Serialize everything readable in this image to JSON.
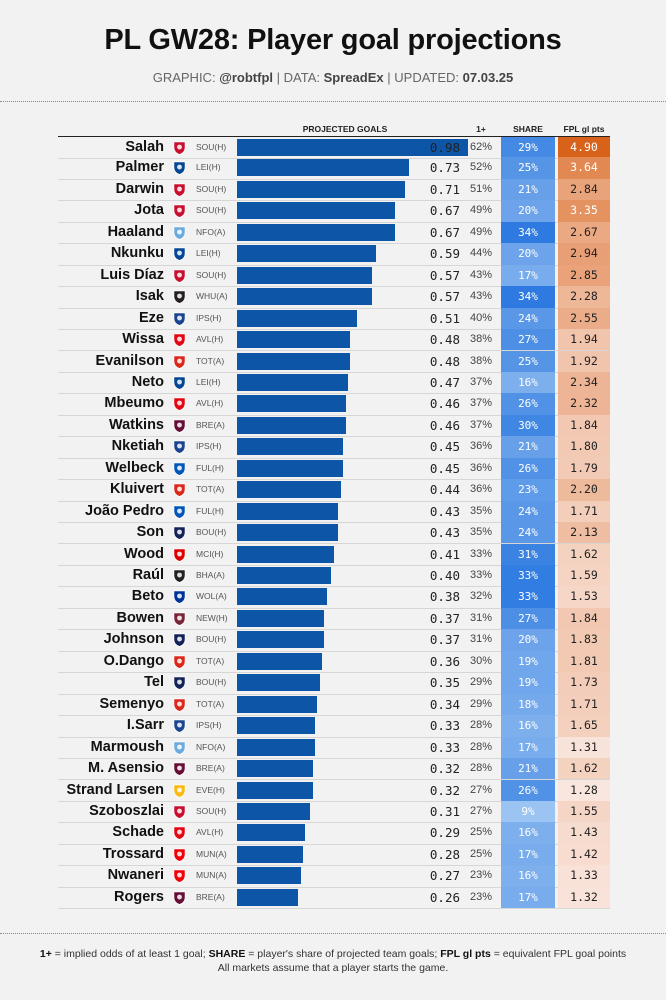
{
  "header": {
    "title": "PL GW28: Player goal projections",
    "graphic_label": "GRAPHIC:",
    "graphic_value": "@robtfpl",
    "data_label": "DATA:",
    "data_value": "SpreadEx",
    "updated_label": "UPDATED:",
    "updated_value": "07.03.25",
    "sep": "|"
  },
  "columns": {
    "projected": "PROJECTED GOALS",
    "odds": "1+",
    "share": "SHARE",
    "fpl": "FPL gl pts"
  },
  "footer": {
    "odds_key": "1+",
    "odds_text": " = implied odds of at least 1 goal; ",
    "share_key": "SHARE",
    "share_text": " = player's share of projected team goals; ",
    "fpl_key": "FPL gl pts",
    "fpl_text": " = equivalent FPL goal points",
    "line2": "All markets assume that a player starts the game."
  },
  "colors": {
    "bar": "#0d55a6",
    "share_low": "#9cc4f2",
    "share_high": "#2e7ae0",
    "fpl_low": "#f9e6de",
    "fpl_high": "#d9621a",
    "LIV": "#c8102e",
    "CHE": "#034694",
    "MCI": "#6cabdd",
    "NEW": "#241f20",
    "CRY": "#1b458f",
    "BRE": "#e30613",
    "BOU": "#da291c",
    "BHA": "#0057b8",
    "AVL": "#670e36",
    "ARS": "#ef0107",
    "TOT": "#132257",
    "NFO": "#dd0000",
    "FUL": "#222222",
    "EVE": "#003399",
    "WHU": "#7a263a",
    "WOL": "#fdb913"
  },
  "chart_data": {
    "type": "table",
    "title": "PL GW28: Player goal projections",
    "xlabel": "PROJECTED GOALS",
    "xlim": [
      0,
      1.0
    ],
    "rows": [
      {
        "player": "Salah",
        "club_icon": "liverpool-crest-icon",
        "club": "LIV",
        "fixture": "SOU(H)",
        "goals": 0.98,
        "odds": "62%",
        "share": "29%",
        "share_num": 29,
        "fpl": 4.9
      },
      {
        "player": "Palmer",
        "club_icon": "chelsea-crest-icon",
        "club": "CHE",
        "fixture": "LEI(H)",
        "goals": 0.73,
        "odds": "52%",
        "share": "25%",
        "share_num": 25,
        "fpl": 3.64
      },
      {
        "player": "Darwin",
        "club_icon": "liverpool-crest-icon",
        "club": "LIV",
        "fixture": "SOU(H)",
        "goals": 0.71,
        "odds": "51%",
        "share": "21%",
        "share_num": 21,
        "fpl": 2.84
      },
      {
        "player": "Jota",
        "club_icon": "liverpool-crest-icon",
        "club": "LIV",
        "fixture": "SOU(H)",
        "goals": 0.67,
        "odds": "49%",
        "share": "20%",
        "share_num": 20,
        "fpl": 3.35
      },
      {
        "player": "Haaland",
        "club_icon": "man-city-crest-icon",
        "club": "MCI",
        "fixture": "NFO(A)",
        "goals": 0.67,
        "odds": "49%",
        "share": "34%",
        "share_num": 34,
        "fpl": 2.67
      },
      {
        "player": "Nkunku",
        "club_icon": "chelsea-crest-icon",
        "club": "CHE",
        "fixture": "LEI(H)",
        "goals": 0.59,
        "odds": "44%",
        "share": "20%",
        "share_num": 20,
        "fpl": 2.94
      },
      {
        "player": "Luis Díaz",
        "club_icon": "liverpool-crest-icon",
        "club": "LIV",
        "fixture": "SOU(H)",
        "goals": 0.57,
        "odds": "43%",
        "share": "17%",
        "share_num": 17,
        "fpl": 2.85
      },
      {
        "player": "Isak",
        "club_icon": "newcastle-crest-icon",
        "club": "NEW",
        "fixture": "WHU(A)",
        "goals": 0.57,
        "odds": "43%",
        "share": "34%",
        "share_num": 34,
        "fpl": 2.28
      },
      {
        "player": "Eze",
        "club_icon": "crystal-palace-crest-icon",
        "club": "CRY",
        "fixture": "IPS(H)",
        "goals": 0.51,
        "odds": "40%",
        "share": "24%",
        "share_num": 24,
        "fpl": 2.55
      },
      {
        "player": "Wissa",
        "club_icon": "brentford-crest-icon",
        "club": "BRE",
        "fixture": "AVL(H)",
        "goals": 0.48,
        "odds": "38%",
        "share": "27%",
        "share_num": 27,
        "fpl": 1.94
      },
      {
        "player": "Evanilson",
        "club_icon": "bournemouth-crest-icon",
        "club": "BOU",
        "fixture": "TOT(A)",
        "goals": 0.48,
        "odds": "38%",
        "share": "25%",
        "share_num": 25,
        "fpl": 1.92
      },
      {
        "player": "Neto",
        "club_icon": "chelsea-crest-icon",
        "club": "CHE",
        "fixture": "LEI(H)",
        "goals": 0.47,
        "odds": "37%",
        "share": "16%",
        "share_num": 16,
        "fpl": 2.34
      },
      {
        "player": "Mbeumo",
        "club_icon": "brentford-crest-icon",
        "club": "BRE",
        "fixture": "AVL(H)",
        "goals": 0.46,
        "odds": "37%",
        "share": "26%",
        "share_num": 26,
        "fpl": 2.32
      },
      {
        "player": "Watkins",
        "club_icon": "aston-villa-crest-icon",
        "club": "AVL",
        "fixture": "BRE(A)",
        "goals": 0.46,
        "odds": "37%",
        "share": "30%",
        "share_num": 30,
        "fpl": 1.84
      },
      {
        "player": "Nketiah",
        "club_icon": "crystal-palace-crest-icon",
        "club": "CRY",
        "fixture": "IPS(H)",
        "goals": 0.45,
        "odds": "36%",
        "share": "21%",
        "share_num": 21,
        "fpl": 1.8
      },
      {
        "player": "Welbeck",
        "club_icon": "brighton-crest-icon",
        "club": "BHA",
        "fixture": "FUL(H)",
        "goals": 0.45,
        "odds": "36%",
        "share": "26%",
        "share_num": 26,
        "fpl": 1.79
      },
      {
        "player": "Kluivert",
        "club_icon": "bournemouth-crest-icon",
        "club": "BOU",
        "fixture": "TOT(A)",
        "goals": 0.44,
        "odds": "36%",
        "share": "23%",
        "share_num": 23,
        "fpl": 2.2
      },
      {
        "player": "João Pedro",
        "club_icon": "brighton-crest-icon",
        "club": "BHA",
        "fixture": "FUL(H)",
        "goals": 0.43,
        "odds": "35%",
        "share": "24%",
        "share_num": 24,
        "fpl": 1.71
      },
      {
        "player": "Son",
        "club_icon": "tottenham-crest-icon",
        "club": "TOT",
        "fixture": "BOU(H)",
        "goals": 0.43,
        "odds": "35%",
        "share": "24%",
        "share_num": 24,
        "fpl": 2.13
      },
      {
        "player": "Wood",
        "club_icon": "nottingham-forest-crest-icon",
        "club": "NFO",
        "fixture": "MCI(H)",
        "goals": 0.41,
        "odds": "33%",
        "share": "31%",
        "share_num": 31,
        "fpl": 1.62
      },
      {
        "player": "Raúl",
        "club_icon": "fulham-crest-icon",
        "club": "FUL",
        "fixture": "BHA(A)",
        "goals": 0.4,
        "odds": "33%",
        "share": "33%",
        "share_num": 33,
        "fpl": 1.59
      },
      {
        "player": "Beto",
        "club_icon": "everton-crest-icon",
        "club": "EVE",
        "fixture": "WOL(A)",
        "goals": 0.38,
        "odds": "32%",
        "share": "33%",
        "share_num": 33,
        "fpl": 1.53
      },
      {
        "player": "Bowen",
        "club_icon": "west-ham-crest-icon",
        "club": "WHU",
        "fixture": "NEW(H)",
        "goals": 0.37,
        "odds": "31%",
        "share": "27%",
        "share_num": 27,
        "fpl": 1.84
      },
      {
        "player": "Johnson",
        "club_icon": "tottenham-crest-icon",
        "club": "TOT",
        "fixture": "BOU(H)",
        "goals": 0.37,
        "odds": "31%",
        "share": "20%",
        "share_num": 20,
        "fpl": 1.83
      },
      {
        "player": "O.Dango",
        "club_icon": "bournemouth-crest-icon",
        "club": "BOU",
        "fixture": "TOT(A)",
        "goals": 0.36,
        "odds": "30%",
        "share": "19%",
        "share_num": 19,
        "fpl": 1.81
      },
      {
        "player": "Tel",
        "club_icon": "tottenham-crest-icon",
        "club": "TOT",
        "fixture": "BOU(H)",
        "goals": 0.35,
        "odds": "29%",
        "share": "19%",
        "share_num": 19,
        "fpl": 1.73
      },
      {
        "player": "Semenyo",
        "club_icon": "bournemouth-crest-icon",
        "club": "BOU",
        "fixture": "TOT(A)",
        "goals": 0.34,
        "odds": "29%",
        "share": "18%",
        "share_num": 18,
        "fpl": 1.71
      },
      {
        "player": "I.Sarr",
        "club_icon": "crystal-palace-crest-icon",
        "club": "CRY",
        "fixture": "IPS(H)",
        "goals": 0.33,
        "odds": "28%",
        "share": "16%",
        "share_num": 16,
        "fpl": 1.65
      },
      {
        "player": "Marmoush",
        "club_icon": "man-city-crest-icon",
        "club": "MCI",
        "fixture": "NFO(A)",
        "goals": 0.33,
        "odds": "28%",
        "share": "17%",
        "share_num": 17,
        "fpl": 1.31
      },
      {
        "player": "M. Asensio",
        "club_icon": "aston-villa-crest-icon",
        "club": "AVL",
        "fixture": "BRE(A)",
        "goals": 0.32,
        "odds": "28%",
        "share": "21%",
        "share_num": 21,
        "fpl": 1.62
      },
      {
        "player": "Strand Larsen",
        "club_icon": "wolves-crest-icon",
        "club": "WOL",
        "fixture": "EVE(H)",
        "goals": 0.32,
        "odds": "27%",
        "share": "26%",
        "share_num": 26,
        "fpl": 1.28
      },
      {
        "player": "Szoboszlai",
        "club_icon": "liverpool-crest-icon",
        "club": "LIV",
        "fixture": "SOU(H)",
        "goals": 0.31,
        "odds": "27%",
        "share": "9%",
        "share_num": 9,
        "fpl": 1.55
      },
      {
        "player": "Schade",
        "club_icon": "brentford-crest-icon",
        "club": "BRE",
        "fixture": "AVL(H)",
        "goals": 0.29,
        "odds": "25%",
        "share": "16%",
        "share_num": 16,
        "fpl": 1.43
      },
      {
        "player": "Trossard",
        "club_icon": "arsenal-crest-icon",
        "club": "ARS",
        "fixture": "MUN(A)",
        "goals": 0.28,
        "odds": "25%",
        "share": "17%",
        "share_num": 17,
        "fpl": 1.42
      },
      {
        "player": "Nwaneri",
        "club_icon": "arsenal-crest-icon",
        "club": "ARS",
        "fixture": "MUN(A)",
        "goals": 0.27,
        "odds": "23%",
        "share": "16%",
        "share_num": 16,
        "fpl": 1.33
      },
      {
        "player": "Rogers",
        "club_icon": "aston-villa-crest-icon",
        "club": "AVL",
        "fixture": "BRE(A)",
        "goals": 0.26,
        "odds": "23%",
        "share": "17%",
        "share_num": 17,
        "fpl": 1.32
      }
    ]
  }
}
